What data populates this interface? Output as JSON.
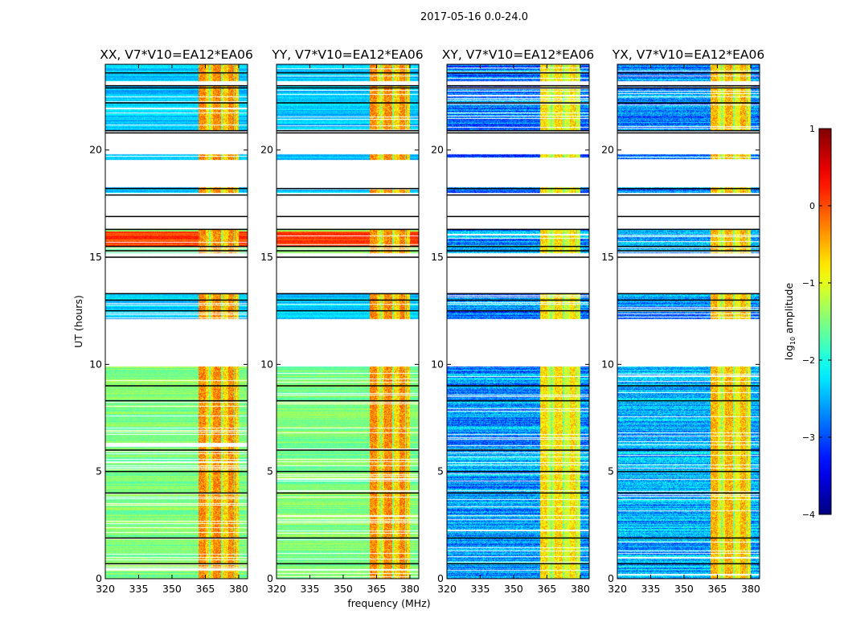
{
  "chart_data": {
    "type": "heatmap",
    "title": "2017-05-16 0.0-24.0",
    "xlabel": "frequency (MHz)",
    "ylabel": "UT (hours)",
    "xlim": [
      320,
      384
    ],
    "ylim": [
      0,
      24
    ],
    "xticks": [
      "320",
      "335",
      "350",
      "365",
      "380"
    ],
    "xtick_values": [
      320,
      335,
      350,
      365,
      380
    ],
    "yticks": [
      "0",
      "5",
      "10",
      "15",
      "20"
    ],
    "ytick_values": [
      0,
      5,
      10,
      15,
      20
    ],
    "colorbar": {
      "label_prefix": "log",
      "label_sub": "10",
      "label_suffix": " amplitude",
      "range": [
        -4,
        1
      ],
      "ticks": [
        "−4",
        "−3",
        "−2",
        "−1",
        "0",
        "1"
      ],
      "tick_values": [
        -4,
        -3,
        -2,
        -1,
        0,
        1
      ],
      "colormap": "jet"
    },
    "panels": [
      {
        "title": "XX, V7*V10=EA12*EA06",
        "base_level": -1.5,
        "rfi_level": -0.5
      },
      {
        "title": "YY, V7*V10=EA12*EA06",
        "base_level": -1.5,
        "rfi_level": -0.5
      },
      {
        "title": "XY, V7*V10=EA12*EA06",
        "base_level": -2.6,
        "rfi_level": -0.9
      },
      {
        "title": "YX, V7*V10=EA12*EA06",
        "base_level": -2.5,
        "rfi_level": -0.7
      }
    ],
    "rfi_band_mhz": [
      362,
      380
    ],
    "data_segments_hours": [
      [
        0,
        9.9
      ],
      [
        12.1,
        13.3
      ],
      [
        15.2,
        16.3
      ],
      [
        18.0,
        18.25
      ],
      [
        19.55,
        19.8
      ],
      [
        20.9,
        23.0
      ],
      [
        23.2,
        24
      ]
    ],
    "flag_lines_hours": [
      0.7,
      1.9,
      4.0,
      5.0,
      6.0,
      8.3,
      9.0,
      12.5,
      13.0,
      13.3,
      15.0,
      15.3,
      15.5,
      16.3,
      16.9,
      17.9,
      18.2,
      20.8,
      20.9,
      22.2,
      22.9,
      23.0,
      23.6
    ]
  }
}
